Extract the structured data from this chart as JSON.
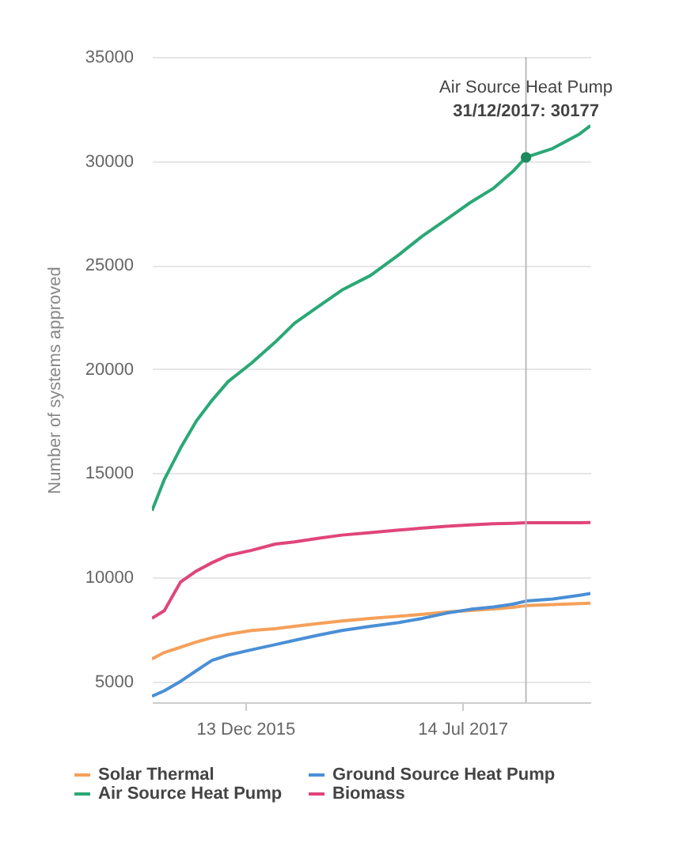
{
  "chart_data": {
    "type": "line",
    "ylabel": "Number of systems approved",
    "x": [
      "2015-04-08",
      "2015-05-11",
      "2015-06-23",
      "2015-08-04",
      "2015-09-15",
      "2015-10-28",
      "2015-12-30",
      "2016-03-02",
      "2016-04-22",
      "2016-06-24",
      "2016-08-27",
      "2016-11-11",
      "2017-01-26",
      "2017-03-30",
      "2017-06-02",
      "2017-08-04",
      "2017-10-06",
      "2017-11-26",
      "2017-12-31",
      "2018-03-12",
      "2018-05-23",
      "2018-06-21"
    ],
    "series": [
      {
        "name": "Solar Thermal",
        "color": "#f5a05a",
        "values": [
          6080,
          6390,
          6640,
          6890,
          7100,
          7270,
          7450,
          7530,
          7650,
          7780,
          7900,
          8030,
          8130,
          8230,
          8330,
          8410,
          8480,
          8560,
          8640,
          8690,
          8740,
          8760
        ]
      },
      {
        "name": "Air Source Heat Pump",
        "color": "#2aa876",
        "values": [
          13200,
          14700,
          16200,
          17500,
          18500,
          19400,
          20300,
          21300,
          22200,
          23000,
          23800,
          24500,
          25500,
          26400,
          27200,
          28000,
          28700,
          29500,
          30177,
          30600,
          31300,
          31700
        ]
      },
      {
        "name": "Ground Source Heat Pump",
        "color": "#4a8fd6",
        "values": [
          4290,
          4550,
          5000,
          5510,
          6010,
          6260,
          6520,
          6770,
          6970,
          7220,
          7450,
          7650,
          7830,
          8030,
          8280,
          8460,
          8580,
          8710,
          8860,
          8960,
          9140,
          9220
        ]
      },
      {
        "name": "Biomass",
        "color": "#e0457b",
        "values": [
          8030,
          8400,
          9770,
          10300,
          10700,
          11050,
          11300,
          11600,
          11700,
          11870,
          12030,
          12150,
          12270,
          12370,
          12450,
          12520,
          12580,
          12600,
          12620,
          12620,
          12620,
          12630
        ]
      }
    ],
    "xlim": [
      "2015-04-08",
      "2018-06-21"
    ],
    "ylim": [
      4000,
      35000
    ],
    "xticks": [
      {
        "value": "2015-12-13",
        "label": "13 Dec 2015"
      },
      {
        "value": "2017-07-14",
        "label": "14 Jul 2017"
      }
    ],
    "yticks": [
      5000,
      10000,
      15000,
      20000,
      25000,
      30000,
      35000
    ],
    "ref_lines": [
      {
        "axis": "x",
        "value": "2017-12-31",
        "color": "#bbbbbb"
      }
    ],
    "annotations": [
      {
        "text": "Air Source Heat Pump\n31/12/2017: 30177",
        "x": "2017-12-31",
        "y": 30177
      }
    ],
    "grid": "y",
    "legend": "bottom",
    "marker": "none",
    "line_style": "solid"
  }
}
